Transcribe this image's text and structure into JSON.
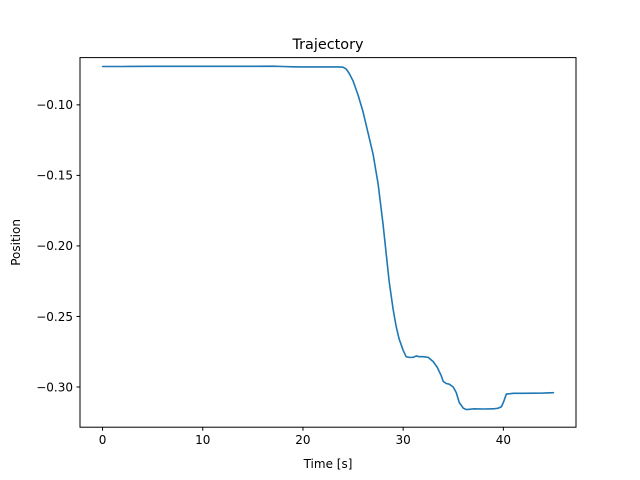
{
  "chart_data": {
    "type": "line",
    "title": "Trajectory",
    "xlabel": "Time [s]",
    "ylabel": "Position",
    "xlim": [
      -2.25,
      47.25
    ],
    "ylim": [
      -0.3285,
      -0.0665
    ],
    "xticks": [
      0,
      10,
      20,
      30,
      40
    ],
    "xtick_labels": [
      "0",
      "10",
      "20",
      "30",
      "40"
    ],
    "yticks": [
      -0.1,
      -0.15,
      -0.2,
      -0.25,
      -0.3
    ],
    "ytick_labels": [
      "−0.10",
      "−0.15",
      "−0.20",
      "−0.25",
      "−0.30"
    ],
    "grid": false,
    "series": [
      {
        "color": "#1f77b4",
        "x": [
          0,
          2,
          5,
          10,
          15,
          17,
          18,
          19,
          20,
          22,
          23.5,
          24,
          24.3,
          24.6,
          25,
          25.5,
          26,
          26.5,
          27,
          27.5,
          28,
          28.3,
          28.6,
          29,
          29.3,
          29.6,
          30,
          30.3,
          30.6,
          31,
          31.3,
          31.6,
          32,
          32.5,
          33,
          33.4,
          33.8,
          34,
          34.3,
          34.6,
          35,
          35.3,
          35.6,
          36,
          36.3,
          36.6,
          37,
          38,
          39,
          39.5,
          39.8,
          40,
          40.3,
          41,
          42,
          43,
          44,
          45
        ],
        "y": [
          -0.0728,
          -0.0728,
          -0.0727,
          -0.0727,
          -0.0727,
          -0.0726,
          -0.0728,
          -0.073,
          -0.0731,
          -0.0731,
          -0.0731,
          -0.0733,
          -0.0745,
          -0.0775,
          -0.083,
          -0.093,
          -0.105,
          -0.12,
          -0.135,
          -0.156,
          -0.185,
          -0.205,
          -0.225,
          -0.245,
          -0.257,
          -0.266,
          -0.274,
          -0.2785,
          -0.279,
          -0.279,
          -0.278,
          -0.2785,
          -0.2785,
          -0.279,
          -0.282,
          -0.286,
          -0.292,
          -0.296,
          -0.2975,
          -0.298,
          -0.3,
          -0.304,
          -0.311,
          -0.315,
          -0.316,
          -0.3158,
          -0.3155,
          -0.3156,
          -0.3155,
          -0.315,
          -0.314,
          -0.311,
          -0.305,
          -0.3045,
          -0.3045,
          -0.3044,
          -0.3043,
          -0.304
        ]
      }
    ]
  }
}
